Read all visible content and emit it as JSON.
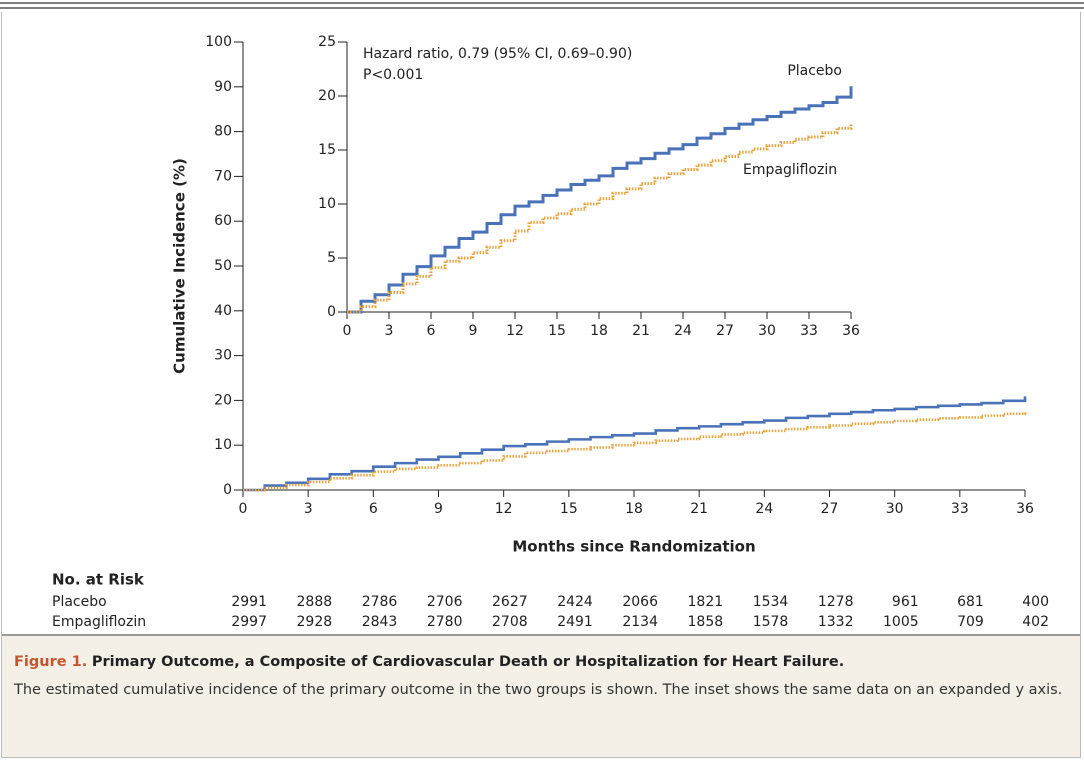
{
  "chart_data": {
    "type": "line",
    "y_label": "Cumulative Incidence (%)",
    "x_label": "Months since Randomization",
    "x": [
      0,
      1,
      2,
      3,
      4,
      5,
      6,
      7,
      8,
      9,
      10,
      11,
      12,
      13,
      14,
      15,
      16,
      17,
      18,
      19,
      20,
      21,
      22,
      23,
      24,
      25,
      26,
      27,
      28,
      29,
      30,
      31,
      32,
      33,
      34,
      35,
      36
    ],
    "series": [
      {
        "name": "Placebo",
        "color": "#4a72b8",
        "dash": false,
        "values": [
          0,
          1,
          1.6,
          2.5,
          3.5,
          4.2,
          5.2,
          6,
          6.8,
          7.4,
          8.2,
          9,
          9.8,
          10.2,
          10.8,
          11.3,
          11.8,
          12.2,
          12.6,
          13.3,
          13.8,
          14.2,
          14.7,
          15.1,
          15.5,
          16.1,
          16.5,
          17,
          17.4,
          17.8,
          18.1,
          18.5,
          18.8,
          19.1,
          19.4,
          19.9,
          20.9
        ]
      },
      {
        "name": "Empagliflozin",
        "color": "#e9a23b",
        "dash": true,
        "values": [
          0,
          0.5,
          1.1,
          1.8,
          2.6,
          3.3,
          4.1,
          4.7,
          5,
          5.5,
          6,
          6.6,
          7.5,
          8.3,
          8.7,
          9.1,
          9.5,
          10,
          10.5,
          11,
          11.4,
          11.9,
          12.4,
          12.8,
          13.2,
          13.6,
          14,
          14.4,
          14.8,
          15.1,
          15.4,
          15.7,
          16,
          16.2,
          16.6,
          17,
          17.4
        ]
      }
    ],
    "xlim": [
      0,
      36
    ],
    "xticks": [
      0,
      3,
      6,
      9,
      12,
      15,
      18,
      21,
      24,
      27,
      30,
      33,
      36
    ],
    "ylim": [
      0,
      100
    ],
    "yticks": [
      0,
      10,
      20,
      30,
      40,
      50,
      60,
      70,
      80,
      90,
      100
    ],
    "inset": {
      "ylim": [
        0,
        25
      ],
      "yticks": [
        0,
        5,
        10,
        15,
        20,
        25
      ],
      "annotations": [
        "Hazard ratio, 0.79 (95% CI, 0.69–0.90)",
        "P<0.001"
      ]
    }
  },
  "risk_table": {
    "title": "No. at Risk",
    "rows": [
      {
        "name": "Placebo",
        "values": [
          2991,
          2888,
          2786,
          2706,
          2627,
          2424,
          2066,
          1821,
          1534,
          1278,
          961,
          681,
          400
        ]
      },
      {
        "name": "Empagliflozin",
        "values": [
          2997,
          2928,
          2843,
          2780,
          2708,
          2491,
          2134,
          1858,
          1578,
          1332,
          1005,
          709,
          402
        ]
      }
    ]
  },
  "caption": {
    "label": "Figure 1.",
    "title": "Primary Outcome, a Composite of Cardiovascular Death or Hospitalization for Heart Failure.",
    "text": "The estimated cumulative incidence of the primary outcome in the two groups is shown. The inset shows the same data on an expanded y axis."
  }
}
